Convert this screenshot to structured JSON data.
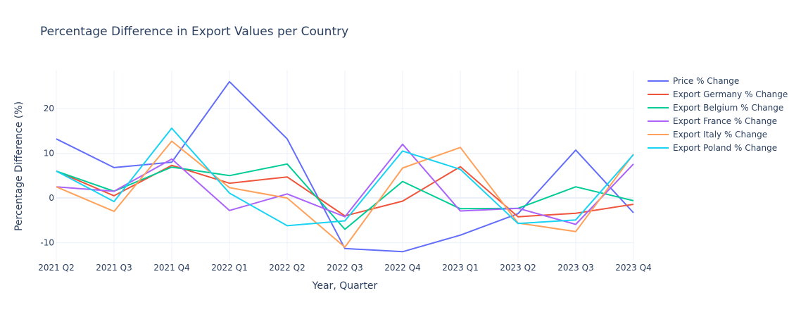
{
  "chart_data": {
    "type": "line",
    "title": "Percentage Difference in Export Values per Country",
    "xlabel": "Year, Quarter",
    "ylabel": "Percentage Difference (%)",
    "categories": [
      "2021 Q2",
      "2021 Q3",
      "2021 Q4",
      "2022 Q1",
      "2022 Q2",
      "2022 Q3",
      "2022 Q4",
      "2023 Q1",
      "2023 Q2",
      "2023 Q3",
      "2023 Q4"
    ],
    "ylim": [
      -14,
      28.5
    ],
    "yticks": [
      -10,
      0,
      10,
      20
    ],
    "grid": true,
    "legend_position": "right",
    "series": [
      {
        "name": "Price % Change",
        "color": "#636efa",
        "values": [
          13.2,
          6.8,
          8.0,
          26.0,
          13.2,
          -11.3,
          -12.0,
          -8.3,
          -3.5,
          10.7,
          -3.3
        ]
      },
      {
        "name": "Export Germany % Change",
        "color": "#EF553B",
        "values": [
          6.0,
          0.5,
          7.3,
          3.3,
          4.7,
          -4.0,
          -0.7,
          7.0,
          -4.2,
          -3.4,
          -1.4
        ]
      },
      {
        "name": "Export Belgium % Change",
        "color": "#00cc96",
        "values": [
          6.0,
          1.5,
          6.9,
          5.0,
          7.6,
          -7.0,
          3.7,
          -2.4,
          -2.3,
          2.5,
          -0.6
        ]
      },
      {
        "name": "Export France % Change",
        "color": "#ab63fa",
        "values": [
          2.5,
          1.5,
          8.7,
          -2.8,
          0.9,
          -4.2,
          12.0,
          -2.9,
          -2.3,
          -5.9,
          7.6
        ]
      },
      {
        "name": "Export Italy % Change",
        "color": "#FFA15A",
        "values": [
          2.5,
          -3.0,
          12.7,
          2.3,
          0.0,
          -11.0,
          6.7,
          11.3,
          -5.6,
          -7.5,
          9.8
        ]
      },
      {
        "name": "Export Poland % Change",
        "color": "#19d3f3",
        "values": [
          6.0,
          -0.8,
          15.6,
          1.1,
          -6.2,
          -5.1,
          10.5,
          6.4,
          -5.7,
          -4.9,
          9.7
        ]
      }
    ]
  }
}
